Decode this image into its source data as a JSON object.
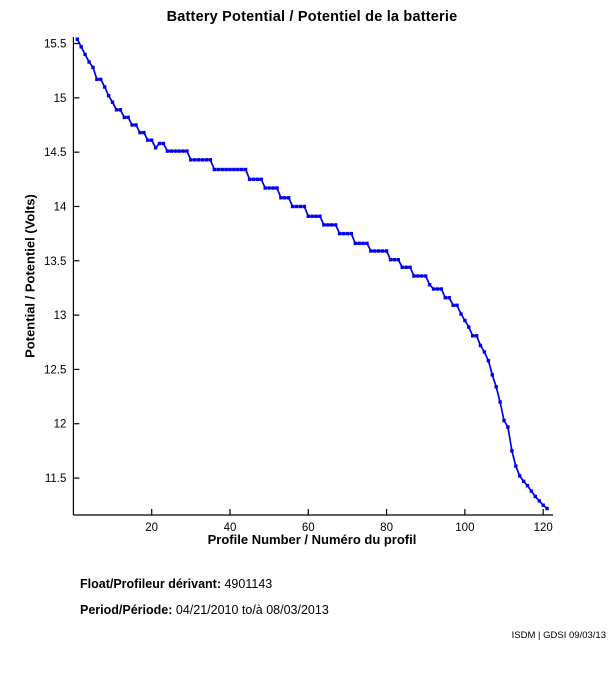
{
  "title": "Battery Potential / Potentiel de la batterie",
  "footer": {
    "float_label": "Float/Profileur dérivant:",
    "float_value": "4901143",
    "period_label": "Period/Période:",
    "period_value": "04/21/2010  to/à  08/03/2013"
  },
  "watermark": "ISDM | GDSI 09/03/13",
  "chart_data": {
    "type": "line",
    "title": "Battery Potential / Potentiel de la batterie",
    "xlabel": "Profile Number / Numéro du profil",
    "ylabel": "Potential / Potentiel (Volts)",
    "xlim": [
      0,
      122
    ],
    "ylim": [
      11.16,
      15.56
    ],
    "xticks": [
      20,
      40,
      60,
      80,
      100,
      120
    ],
    "yticks": [
      11.5,
      12,
      12.5,
      13,
      13.5,
      14,
      14.5,
      15,
      15.5
    ],
    "grid": false,
    "legend": null,
    "line_color": "#0000ee",
    "marker": "square-dot",
    "x": [
      1,
      2,
      3,
      4,
      5,
      6,
      7,
      8,
      9,
      10,
      11,
      12,
      13,
      14,
      15,
      16,
      17,
      18,
      19,
      20,
      21,
      22,
      23,
      24,
      25,
      26,
      27,
      28,
      29,
      30,
      31,
      32,
      33,
      34,
      35,
      36,
      37,
      38,
      39,
      40,
      41,
      42,
      43,
      44,
      45,
      46,
      47,
      48,
      49,
      50,
      51,
      52,
      53,
      54,
      55,
      56,
      57,
      58,
      59,
      60,
      61,
      62,
      63,
      64,
      65,
      66,
      67,
      68,
      69,
      70,
      71,
      72,
      73,
      74,
      75,
      76,
      77,
      78,
      79,
      80,
      81,
      82,
      83,
      84,
      85,
      86,
      87,
      88,
      89,
      90,
      91,
      92,
      93,
      94,
      95,
      96,
      97,
      98,
      99,
      100,
      101,
      102,
      103,
      104,
      105,
      106,
      107,
      108,
      109,
      110,
      111,
      112,
      113,
      114,
      115,
      116,
      117,
      118,
      119,
      120,
      121
    ],
    "values": [
      15.54,
      15.47,
      15.4,
      15.33,
      15.28,
      15.17,
      15.17,
      15.1,
      15.02,
      14.96,
      14.89,
      14.89,
      14.82,
      14.82,
      14.75,
      14.75,
      14.68,
      14.68,
      14.61,
      14.61,
      14.54,
      14.58,
      14.58,
      14.51,
      14.51,
      14.51,
      14.51,
      14.51,
      14.51,
      14.43,
      14.43,
      14.43,
      14.43,
      14.43,
      14.43,
      14.34,
      14.34,
      14.34,
      14.34,
      14.34,
      14.34,
      14.34,
      14.34,
      14.34,
      14.25,
      14.25,
      14.25,
      14.25,
      14.17,
      14.17,
      14.17,
      14.17,
      14.08,
      14.08,
      14.08,
      14.0,
      14.0,
      14.0,
      14.0,
      13.91,
      13.91,
      13.91,
      13.91,
      13.83,
      13.83,
      13.83,
      13.83,
      13.75,
      13.75,
      13.75,
      13.75,
      13.66,
      13.66,
      13.66,
      13.66,
      13.59,
      13.59,
      13.59,
      13.59,
      13.59,
      13.51,
      13.51,
      13.51,
      13.44,
      13.44,
      13.44,
      13.36,
      13.36,
      13.36,
      13.36,
      13.28,
      13.24,
      13.24,
      13.24,
      13.16,
      13.16,
      13.09,
      13.09,
      13.01,
      12.95,
      12.89,
      12.81,
      12.81,
      12.72,
      12.66,
      12.58,
      12.45,
      12.34,
      12.2,
      12.03,
      11.97,
      11.75,
      11.61,
      11.52,
      11.47,
      11.43,
      11.38,
      11.33,
      11.29,
      11.25,
      11.22
    ]
  }
}
